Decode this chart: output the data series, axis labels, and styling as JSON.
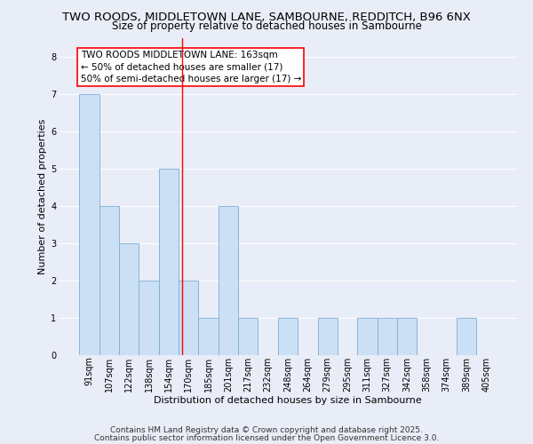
{
  "title_line1": "TWO ROODS, MIDDLETOWN LANE, SAMBOURNE, REDDITCH, B96 6NX",
  "title_line2": "Size of property relative to detached houses in Sambourne",
  "xlabel": "Distribution of detached houses by size in Sambourne",
  "ylabel": "Number of detached properties",
  "categories": [
    "91sqm",
    "107sqm",
    "122sqm",
    "138sqm",
    "154sqm",
    "170sqm",
    "185sqm",
    "201sqm",
    "217sqm",
    "232sqm",
    "248sqm",
    "264sqm",
    "279sqm",
    "295sqm",
    "311sqm",
    "327sqm",
    "342sqm",
    "358sqm",
    "374sqm",
    "389sqm",
    "405sqm"
  ],
  "values": [
    7,
    4,
    3,
    2,
    5,
    2,
    1,
    4,
    1,
    0,
    1,
    0,
    1,
    0,
    1,
    1,
    1,
    0,
    0,
    1,
    0
  ],
  "bar_color": "#cce0f5",
  "bar_edge_color": "#7bafd4",
  "red_line_x": 4.67,
  "annotation_text": "TWO ROODS MIDDLETOWN LANE: 163sqm\n← 50% of detached houses are smaller (17)\n50% of semi-detached houses are larger (17) →",
  "ylim": [
    0,
    8.5
  ],
  "yticks": [
    0,
    1,
    2,
    3,
    4,
    5,
    6,
    7,
    8
  ],
  "footer_line1": "Contains HM Land Registry data © Crown copyright and database right 2025.",
  "footer_line2": "Contains public sector information licensed under the Open Government Licence 3.0.",
  "background_color": "#e8edf7",
  "plot_background": "#e8edf7",
  "grid_color": "#ffffff",
  "title_fontsize": 9.5,
  "subtitle_fontsize": 8.5,
  "axis_label_fontsize": 8,
  "tick_fontsize": 7,
  "annotation_fontsize": 7.5,
  "footer_fontsize": 6.5
}
